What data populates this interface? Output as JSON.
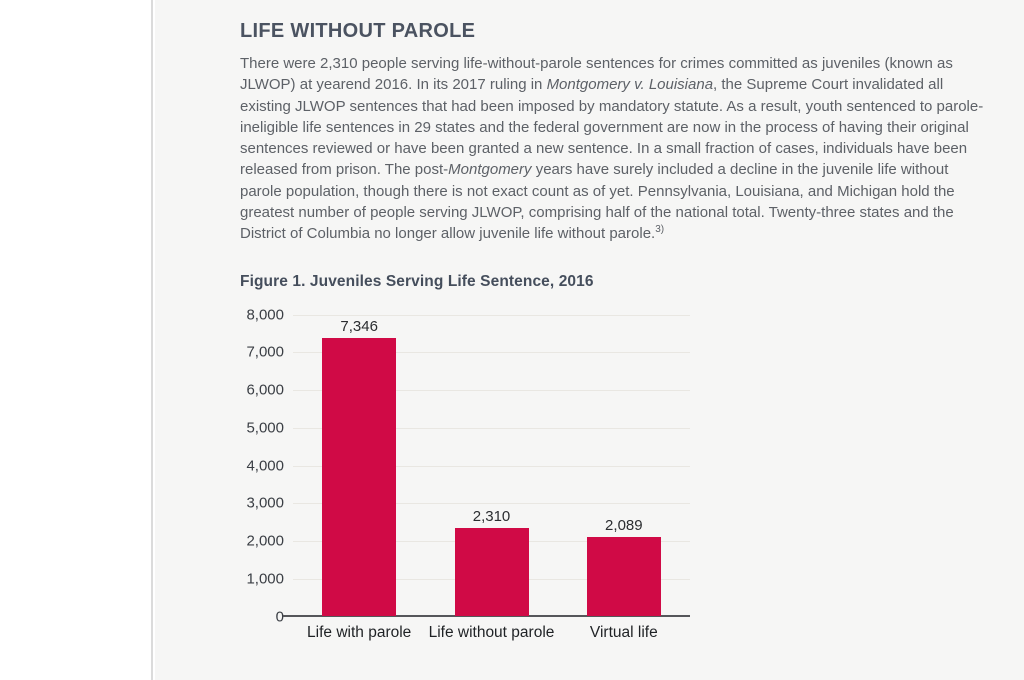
{
  "page": {
    "heading": "LIFE WITHOUT PAROLE",
    "figure_title": "Figure 1. Juveniles Serving Life Sentence, 2016"
  },
  "paragraph": {
    "segments": [
      {
        "style": "normal",
        "text": "There were 2,310 people serving life-without-parole sentences for crimes committed as juveniles (known as JLWOP) at yearend 2016. In its 2017 ruling in "
      },
      {
        "style": "italic",
        "text": "Montgomery v. Louisiana"
      },
      {
        "style": "normal",
        "text": ", the Supreme Court invalidated all existing JLWOP sentences that had been imposed by mandatory statute. As a result, youth sentenced to parole-ineligible life sentences in 29 states and the federal government are now in the process of having their original sentences reviewed or have been granted a new sentence. In a small fraction of cases, individuals have been released from prison. The post-"
      },
      {
        "style": "italic",
        "text": "Montgomery"
      },
      {
        "style": "normal",
        "text": " years have surely included a decline in the juvenile life without parole population, though there is not exact count as of yet. Pennsylvania, Louisiana, and Michigan hold the greatest number of people serving JLWOP, comprising half of the national total. Twenty-three states and the District of Columbia no longer allow juvenile life without parole."
      },
      {
        "style": "sup",
        "text": "3)"
      }
    ]
  },
  "chart_data": {
    "type": "bar",
    "title": "Figure 1. Juveniles Serving Life Sentence, 2016",
    "categories": [
      "Life with parole",
      "Life without parole",
      "Virtual life"
    ],
    "values": [
      7346,
      2310,
      2089
    ],
    "value_labels": [
      "7,346",
      "2,310",
      "2,089"
    ],
    "xlabel": "",
    "ylabel": "",
    "ylim": [
      0,
      8000
    ],
    "ytick_step": 1000,
    "ytick_labels": [
      "8,000",
      "7,000",
      "6,000",
      "5,000",
      "4,000",
      "3,000",
      "2,000",
      "1,000",
      "0"
    ],
    "grid": true,
    "legend": "none",
    "bar_color": "#d00a46",
    "gridline_color": "#e9e7e2",
    "axis_color": "#55565a"
  }
}
